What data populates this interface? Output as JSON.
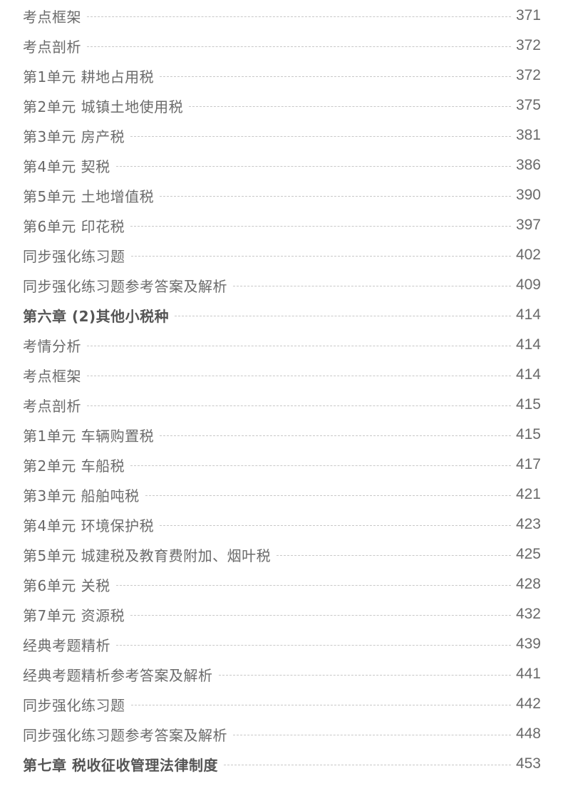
{
  "entries": [
    {
      "title": "考点框架",
      "page": "371",
      "bold": false
    },
    {
      "title": "考点剖析",
      "page": "372",
      "bold": false
    },
    {
      "title": "第1单元 耕地占用税",
      "page": "372",
      "bold": false
    },
    {
      "title": "第2单元 城镇土地使用税",
      "page": "375",
      "bold": false
    },
    {
      "title": "第3单元 房产税",
      "page": "381",
      "bold": false
    },
    {
      "title": "第4单元 契税",
      "page": "386",
      "bold": false
    },
    {
      "title": "第5单元 土地增值税",
      "page": "390",
      "bold": false
    },
    {
      "title": "第6单元 印花税",
      "page": "397",
      "bold": false
    },
    {
      "title": "同步强化练习题",
      "page": "402",
      "bold": false
    },
    {
      "title": "同步强化练习题参考答案及解析",
      "page": "409",
      "bold": false
    },
    {
      "title": "第六章  (2)其他小税种",
      "page": "414",
      "bold": true
    },
    {
      "title": "考情分析",
      "page": "414",
      "bold": false
    },
    {
      "title": "考点框架",
      "page": "414",
      "bold": false
    },
    {
      "title": "考点剖析",
      "page": "415",
      "bold": false
    },
    {
      "title": "第1单元 车辆购置税",
      "page": "415",
      "bold": false
    },
    {
      "title": "第2单元 车船税",
      "page": "417",
      "bold": false
    },
    {
      "title": "第3单元 船舶吨税",
      "page": "421",
      "bold": false
    },
    {
      "title": "第4单元 环境保护税",
      "page": "423",
      "bold": false
    },
    {
      "title": "第5单元 城建税及教育费附加、烟叶税",
      "page": "425",
      "bold": false
    },
    {
      "title": "第6单元 关税",
      "page": "428",
      "bold": false
    },
    {
      "title": "第7单元 资源税",
      "page": "432",
      "bold": false
    },
    {
      "title": "经典考题精析",
      "page": "439",
      "bold": false
    },
    {
      "title": "经典考题精析参考答案及解析",
      "page": "441",
      "bold": false
    },
    {
      "title": "同步强化练习题",
      "page": "442",
      "bold": false
    },
    {
      "title": "同步强化练习题参考答案及解析",
      "page": "448",
      "bold": false
    },
    {
      "title": "第七章  税收征收管理法律制度",
      "page": "453",
      "bold": true
    }
  ]
}
